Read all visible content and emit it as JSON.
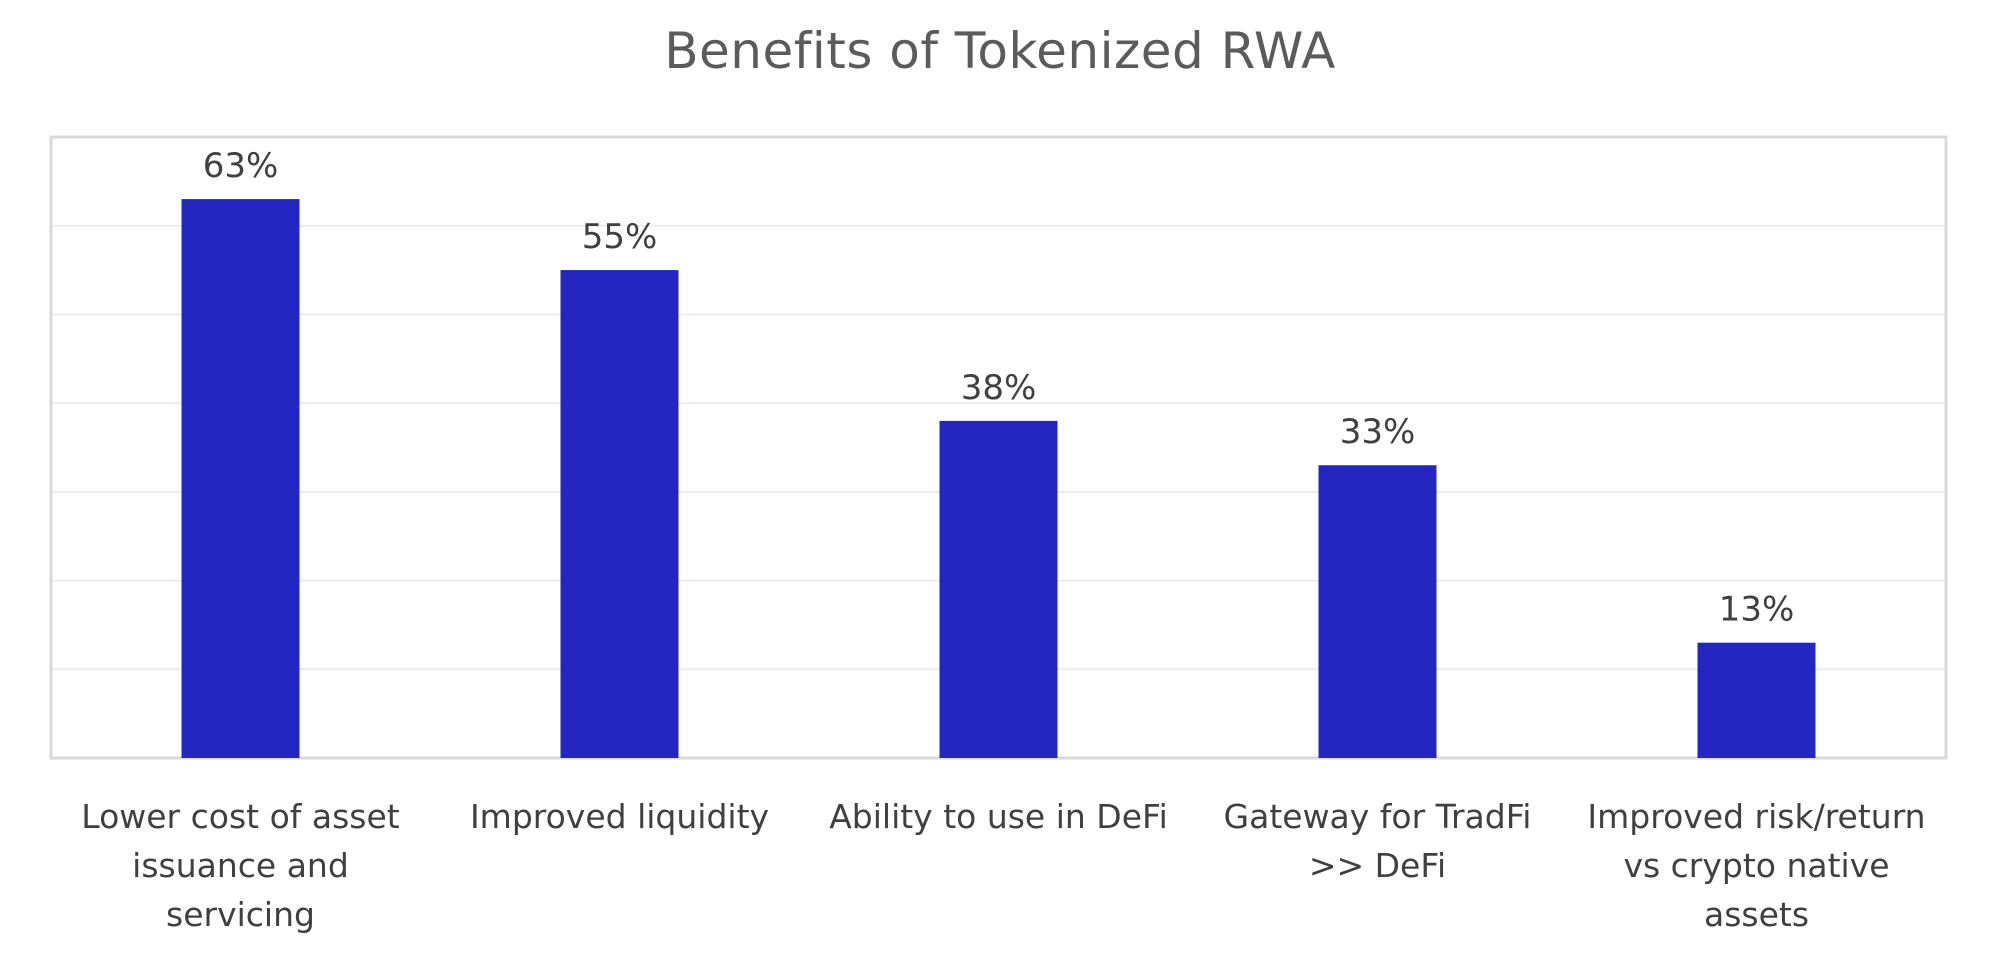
{
  "chart_data": {
    "type": "bar",
    "title": "Benefits of Tokenized RWA",
    "xlabel": "",
    "ylabel": "",
    "categories": [
      [
        "Lower cost of asset",
        "issuance and",
        "servicing"
      ],
      [
        "Improved liquidity"
      ],
      [
        "Ability to use in DeFi"
      ],
      [
        "Gateway for TradFi",
        ">> DeFi"
      ],
      [
        "Improved risk/return",
        "vs crypto native",
        "assets"
      ]
    ],
    "values": [
      63,
      55,
      38,
      33,
      13
    ],
    "data_labels": [
      "63%",
      "55%",
      "38%",
      "33%",
      "13%"
    ],
    "ylim": [
      0,
      70
    ],
    "y_gridlines": [
      10,
      20,
      30,
      40,
      50,
      60
    ],
    "y_axis_labels_visible": false,
    "grid": true,
    "legend": "none",
    "colors": {
      "bar": "#2326c1",
      "gridline": "#ececec",
      "frame": "#d9d9d9",
      "title": "#5b5b5b",
      "data_label": "#404040",
      "category_label": "#404040"
    }
  }
}
